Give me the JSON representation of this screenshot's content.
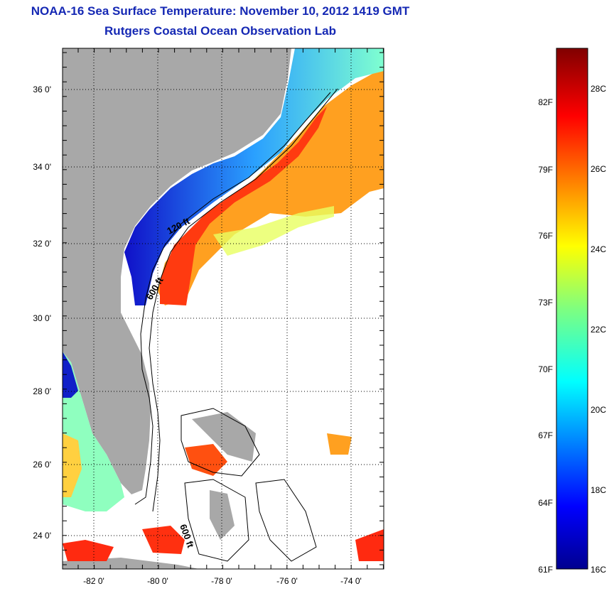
{
  "header": {
    "title": "NOAA-16 Sea Surface Temperature:  November 10, 2012 1419 GMT",
    "subtitle": "Rutgers Coastal Ocean Observation Lab"
  },
  "map": {
    "lat_ticks": [
      "36 0'",
      "34 0'",
      "32 0'",
      "30 0'",
      "28 0'",
      "26 0'",
      "24 0'"
    ],
    "lon_ticks": [
      "-82 0'",
      "-80 0'",
      "-78 0'",
      "-76 0'",
      "-74 0'"
    ],
    "contour_labels": [
      "120 ft",
      "600 ft",
      "600 ft"
    ],
    "colors": {
      "land": "#a8a8a8",
      "no_data": "#ffffff",
      "contour": "#000000"
    }
  },
  "colorbar": {
    "fahrenheit_labels": [
      "82F",
      "79F",
      "76F",
      "73F",
      "70F",
      "67F",
      "64F",
      "61F"
    ],
    "celsius_labels": [
      "28C",
      "26C",
      "24C",
      "22C",
      "20C",
      "18C",
      "16C"
    ],
    "range_celsius": [
      16,
      29
    ],
    "colormap": "jet"
  }
}
